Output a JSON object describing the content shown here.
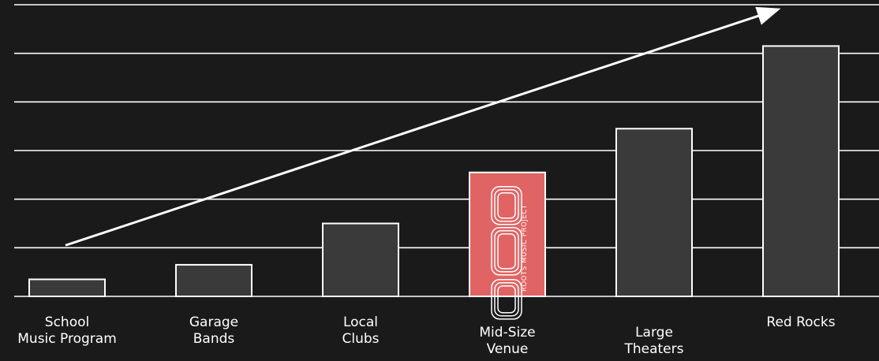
{
  "chart_data": {
    "type": "bar",
    "categories": [
      "School Music Program",
      "Garage Bands",
      "Local Clubs",
      "Mid-Size Venue",
      "Large Theaters",
      "Red Rocks"
    ],
    "category_label_lines": [
      [
        "School",
        "Music Program"
      ],
      [
        "Garage",
        "Bands"
      ],
      [
        "Local",
        "Clubs"
      ],
      [
        "Mid-Size",
        "Venue"
      ],
      [
        "Large",
        "Theaters"
      ],
      [
        "Red Rocks"
      ]
    ],
    "values": [
      0.35,
      0.65,
      1.5,
      2.55,
      3.45,
      5.15
    ],
    "ylim": [
      0,
      6
    ],
    "grid": true,
    "trend_arrow": {
      "from": [
        0.5,
        1.05
      ],
      "to": [
        6.5,
        5.9
      ]
    },
    "highlight_index": 3,
    "title": "",
    "xlabel": "",
    "ylabel": ""
  },
  "logo": {
    "mark": "RMP",
    "text": "ROOTS MUSIC PROJECT"
  },
  "colors": {
    "background": "#1b1a1a",
    "bar_fill": "#3a3a3a",
    "bar_stroke": "#ffffff",
    "highlight_fill": "#e06464",
    "grid": "#ffffff",
    "arrow": "#ffffff"
  }
}
